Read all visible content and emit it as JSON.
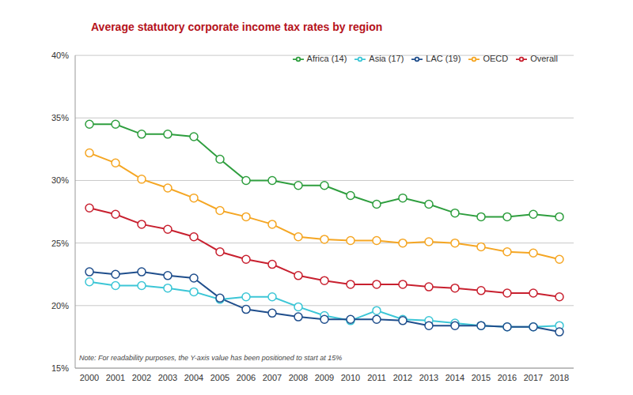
{
  "chart_data": {
    "type": "line",
    "title": "Average statutory corporate income tax rates by region",
    "note": "Note: For readability purposes, the Y-axis value has been positioned to start at 15%",
    "categories": [
      "2000",
      "2001",
      "2002",
      "2003",
      "2004",
      "2005",
      "2006",
      "2007",
      "2008",
      "2009",
      "2010",
      "2011",
      "2012",
      "2013",
      "2014",
      "2015",
      "2016",
      "2017",
      "2018"
    ],
    "series": [
      {
        "name": "Overall",
        "color": "#c8202f",
        "values": [
          27.8,
          27.3,
          26.5,
          26.1,
          25.5,
          24.3,
          23.7,
          23.3,
          22.4,
          22.0,
          21.7,
          21.7,
          21.7,
          21.5,
          21.4,
          21.2,
          21.0,
          21.0,
          20.7
        ]
      },
      {
        "name": "Africa (14)",
        "color": "#2e9e3e",
        "values": [
          34.5,
          34.5,
          33.7,
          33.7,
          33.5,
          31.7,
          30.0,
          30.0,
          29.6,
          29.6,
          28.8,
          28.1,
          28.6,
          28.1,
          27.4,
          27.1,
          27.1,
          27.3,
          27.1
        ]
      },
      {
        "name": "Asia (17)",
        "color": "#3cc6d6",
        "values": [
          21.9,
          21.6,
          21.6,
          21.4,
          21.1,
          20.5,
          20.7,
          20.7,
          19.9,
          19.2,
          18.8,
          19.6,
          18.9,
          18.8,
          18.6,
          18.4,
          18.3,
          18.3,
          18.4
        ]
      },
      {
        "name": "LAC (19)",
        "color": "#1f4e8c",
        "values": [
          22.7,
          22.5,
          22.7,
          22.4,
          22.2,
          20.6,
          19.7,
          19.4,
          19.1,
          18.9,
          18.9,
          18.9,
          18.8,
          18.4,
          18.4,
          18.4,
          18.3,
          18.3,
          17.9
        ]
      },
      {
        "name": "OECD",
        "color": "#f5a623",
        "values": [
          32.2,
          31.4,
          30.1,
          29.4,
          28.6,
          27.6,
          27.1,
          26.5,
          25.5,
          25.3,
          25.2,
          25.2,
          25.0,
          25.1,
          25.0,
          24.7,
          24.3,
          24.2,
          23.7
        ]
      }
    ],
    "ylim": [
      15,
      40
    ],
    "yticks": [
      {
        "value": 15,
        "label": "15%"
      },
      {
        "value": 20,
        "label": "20%"
      },
      {
        "value": 25,
        "label": "25%"
      },
      {
        "value": 30,
        "label": "30%"
      },
      {
        "value": 35,
        "label": "35%"
      },
      {
        "value": 40,
        "label": "40%"
      }
    ],
    "grid": true,
    "legend": "top-right",
    "marker": "circle"
  }
}
